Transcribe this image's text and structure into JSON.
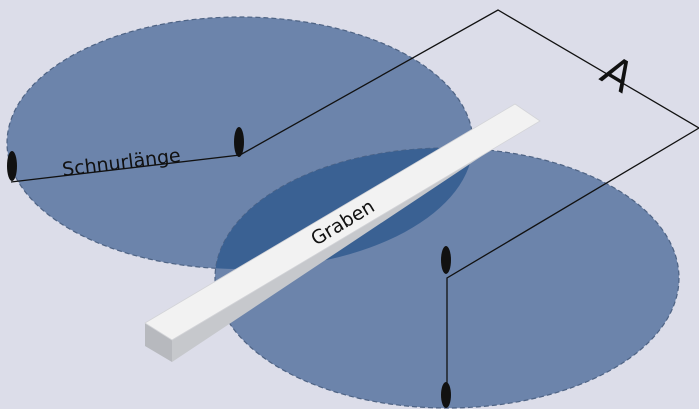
{
  "labels": {
    "cord_length": "Schnurlänge",
    "trench": "Graben",
    "distance": "A"
  },
  "colors": {
    "background": "#dcdde9",
    "zone": "#6c84ab",
    "overlap": "#3a6193",
    "trench_top": "#f2f2f2",
    "trench_side": "#b9bbc0",
    "line": "#111111"
  }
}
